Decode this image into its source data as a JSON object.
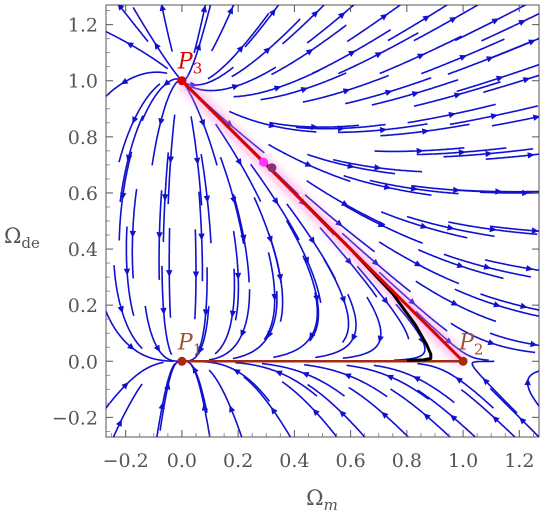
{
  "chart_data": {
    "type": "scatter",
    "title": "",
    "xlabel": "Ω_m",
    "ylabel": "Ω_de",
    "xlabel_main": "Ω",
    "xlabel_sub": "m",
    "ylabel_main": "Ω",
    "ylabel_sub": "de",
    "xlim": [
      -0.27,
      1.27
    ],
    "ylim": [
      -0.27,
      1.27
    ],
    "xticks": [
      "−0.2",
      "0.0",
      "0.2",
      "0.4",
      "0.6",
      "0.8",
      "1.0",
      "1.2"
    ],
    "yticks": [
      "−0.2",
      "0.0",
      "0.2",
      "0.4",
      "0.6",
      "0.8",
      "1.0",
      "1.2"
    ],
    "xtick_values": [
      -0.2,
      0.0,
      0.2,
      0.4,
      0.6,
      0.8,
      1.0,
      1.2
    ],
    "ytick_values": [
      -0.2,
      0.0,
      0.2,
      0.4,
      0.6,
      0.8,
      1.0,
      1.2
    ],
    "grid": false,
    "critical_points": [
      {
        "name": "P",
        "sub": "1",
        "x": 0.0,
        "y": 0.0
      },
      {
        "name": "P",
        "sub": "2",
        "x": 1.0,
        "y": 0.0
      },
      {
        "name": "P",
        "sub": "3",
        "x": 0.0,
        "y": 1.0
      }
    ],
    "markers": [
      {
        "x": 0.29,
        "y": 0.71,
        "color": "#ff33ff"
      },
      {
        "x": 0.32,
        "y": 0.69,
        "color": "#8a2f7a"
      }
    ],
    "boundary_segments": [
      {
        "from": [
          0.0,
          0.0
        ],
        "to": [
          1.0,
          0.0
        ],
        "color": "#a52a10"
      },
      {
        "from": [
          1.0,
          0.0
        ],
        "to": [
          0.0,
          1.0
        ],
        "color": "#a52a10"
      }
    ],
    "trajectories": [
      {
        "color": "#000000",
        "points": [
          [
            0.0,
            1.0
          ],
          [
            0.2,
            0.8
          ],
          [
            0.4,
            0.6
          ],
          [
            0.6,
            0.4
          ],
          [
            0.75,
            0.24
          ],
          [
            0.83,
            0.13
          ],
          [
            0.87,
            0.06
          ],
          [
            0.885,
            0.025
          ],
          [
            0.885,
            0.01
          ],
          [
            0.86,
            0.005
          ],
          [
            0.8,
            0.003
          ]
        ]
      },
      {
        "color": "#e00000",
        "points": [
          [
            0.0,
            1.0
          ],
          [
            0.3,
            0.7
          ],
          [
            0.6,
            0.4
          ],
          [
            0.9,
            0.1
          ],
          [
            1.0,
            0.0
          ]
        ]
      }
    ],
    "colors": {
      "streamlines": "#1010d0",
      "critical_point": "#a52a10",
      "p3_point": "#e00000",
      "p1_label": "#a0522d",
      "p2_label": "#a0522d",
      "p3_label": "#e00000",
      "highlight": "#ff88dd"
    }
  }
}
